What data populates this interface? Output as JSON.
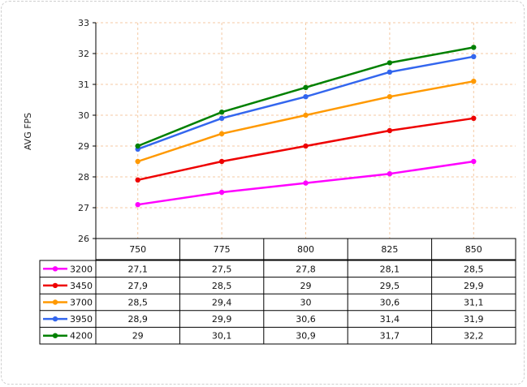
{
  "chart_data": {
    "type": "line",
    "ylabel": "AVG FPS",
    "ylim": [
      26,
      33
    ],
    "yticks": [
      26,
      27,
      28,
      29,
      30,
      31,
      32,
      33
    ],
    "categories": [
      "750",
      "775",
      "800",
      "825",
      "850"
    ],
    "grid": true,
    "legend": "data-table-below",
    "series": [
      {
        "name": "3200",
        "color": "#ff00ff",
        "values": [
          27.1,
          27.5,
          27.8,
          28.1,
          28.5
        ],
        "labels": [
          "27,1",
          "27,5",
          "27,8",
          "28,1",
          "28,5"
        ]
      },
      {
        "name": "3450",
        "color": "#ee0000",
        "values": [
          27.9,
          28.5,
          29,
          29.5,
          29.9
        ],
        "labels": [
          "27,9",
          "28,5",
          "29",
          "29,5",
          "29,9"
        ]
      },
      {
        "name": "3700",
        "color": "#ff9900",
        "values": [
          28.5,
          29.4,
          30,
          30.6,
          31.1
        ],
        "labels": [
          "28,5",
          "29,4",
          "30",
          "30,6",
          "31,1"
        ]
      },
      {
        "name": "3950",
        "color": "#3366ee",
        "values": [
          28.9,
          29.9,
          30.6,
          31.4,
          31.9
        ],
        "labels": [
          "28,9",
          "29,9",
          "30,6",
          "31,4",
          "31,9"
        ]
      },
      {
        "name": "4200",
        "color": "#008000",
        "values": [
          29,
          30.1,
          30.9,
          31.7,
          32.2
        ],
        "labels": [
          "29",
          "30,1",
          "30,9",
          "31,7",
          "32,2"
        ]
      }
    ]
  }
}
